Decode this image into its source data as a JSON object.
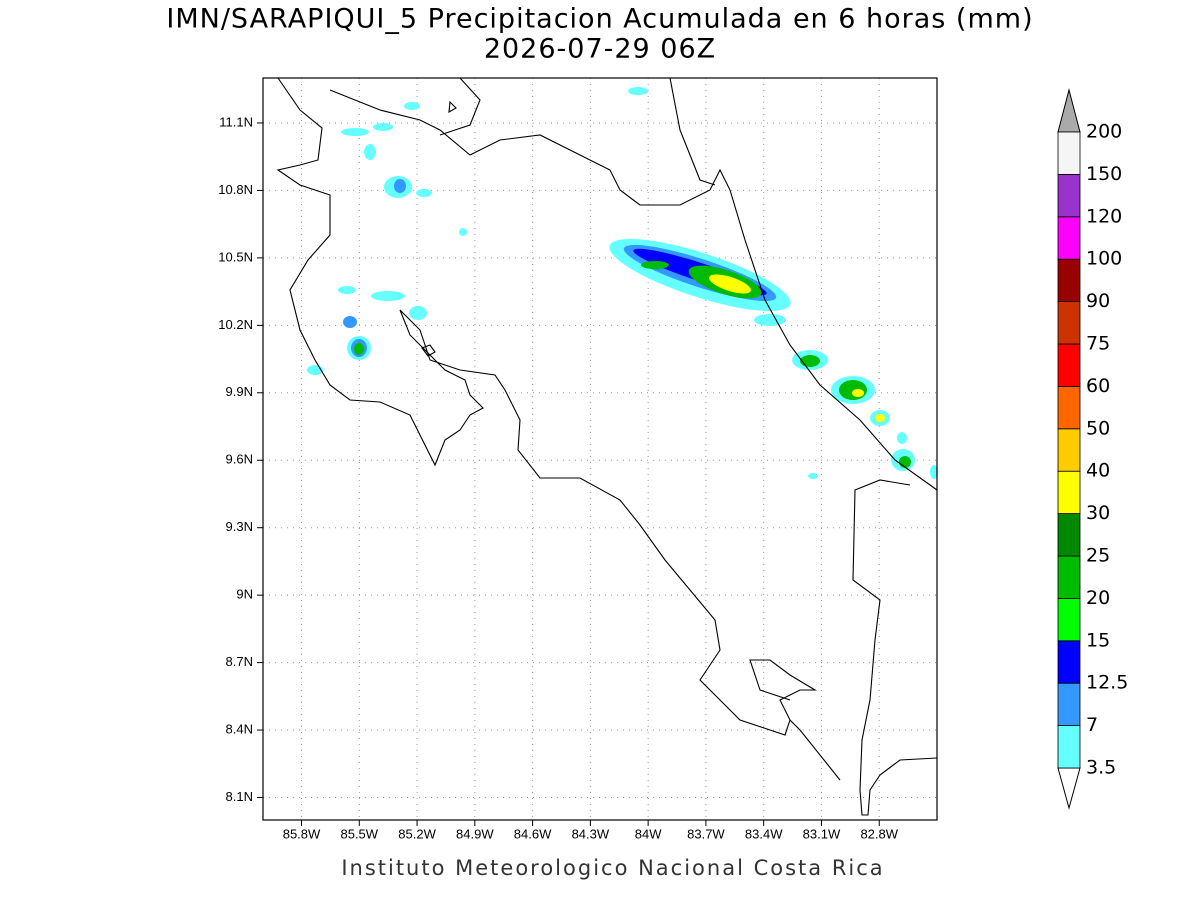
{
  "title": "IMN/SARAPIQUI_5 Precipitacion Acumulada en 6 horas (mm)",
  "subtitle": "2026-07-29 06Z",
  "map": {
    "lonlim": [
      -86.0,
      -82.5
    ],
    "latlim": [
      8.0,
      11.3
    ],
    "grid": true,
    "lon_ticks": [
      {
        "value": -85.8,
        "label": "85.8W"
      },
      {
        "value": -85.5,
        "label": "85.5W"
      },
      {
        "value": -85.2,
        "label": "85.2W"
      },
      {
        "value": -84.9,
        "label": "84.9W"
      },
      {
        "value": -84.6,
        "label": "84.6W"
      },
      {
        "value": -84.3,
        "label": "84.3W"
      },
      {
        "value": -84.0,
        "label": "84W"
      },
      {
        "value": -83.7,
        "label": "83.7W"
      },
      {
        "value": -83.4,
        "label": "83.4W"
      },
      {
        "value": -83.1,
        "label": "83.1W"
      },
      {
        "value": -82.8,
        "label": "82.8W"
      }
    ],
    "lat_ticks": [
      {
        "value": 8.1,
        "label": "8.1N"
      },
      {
        "value": 8.4,
        "label": "8.4N"
      },
      {
        "value": 8.7,
        "label": "8.7N"
      },
      {
        "value": 9.0,
        "label": "9N"
      },
      {
        "value": 9.3,
        "label": "9.3N"
      },
      {
        "value": 9.6,
        "label": "9.6N"
      },
      {
        "value": 9.9,
        "label": "9.9N"
      },
      {
        "value": 10.2,
        "label": "10.2N"
      },
      {
        "value": 10.5,
        "label": "10.5N"
      },
      {
        "value": 10.8,
        "label": "10.8N"
      },
      {
        "value": 11.1,
        "label": "11.1N"
      }
    ]
  },
  "colorbar": {
    "levels": [
      3.5,
      7,
      12.5,
      15,
      20,
      25,
      30,
      40,
      50,
      60,
      75,
      90,
      100,
      120,
      150,
      200
    ],
    "colors": [
      "#66ffff",
      "#3399ff",
      "#0000ff",
      "#00ff00",
      "#00bb00",
      "#008800",
      "#ffff00",
      "#ffcc00",
      "#ff6600",
      "#ff0000",
      "#cc3300",
      "#990000",
      "#ff00ff",
      "#9933cc",
      "#f5f5f5"
    ],
    "under_color": "#ffffff",
    "over_color": "#aaaaaa"
  },
  "credit": "Instituto Meteorologico Nacional Costa Rica"
}
